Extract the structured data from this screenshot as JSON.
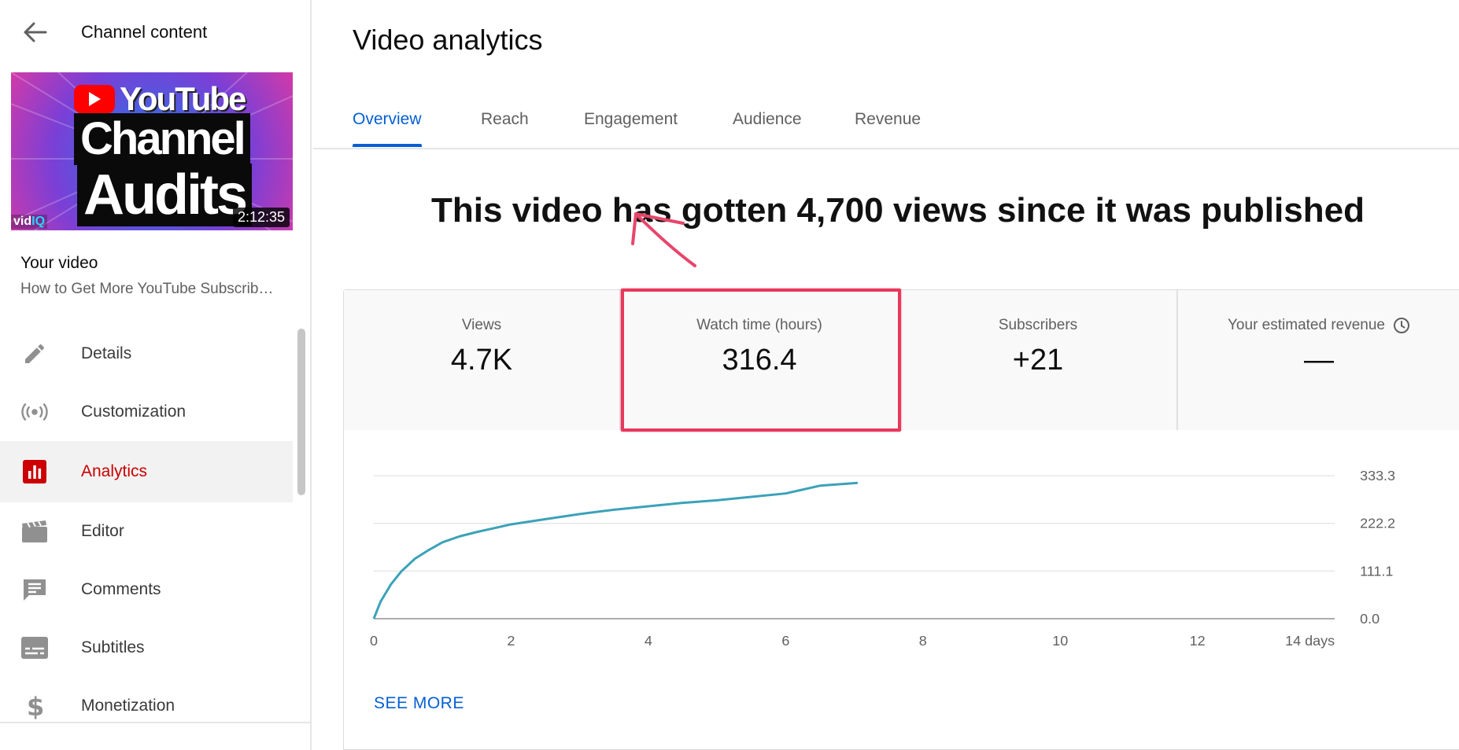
{
  "sidebar": {
    "back_title": "Channel content",
    "thumbnail": {
      "line1": "YouTube",
      "line2": "Channel",
      "line3": "Audits",
      "brand_vid": "vid",
      "brand_iq": "IQ",
      "duration": "2:12:35"
    },
    "your_video_label": "Your video",
    "video_title": "How to Get More YouTube Subscrib…",
    "nav": [
      {
        "label": "Details",
        "icon": "pencil-icon"
      },
      {
        "label": "Customization",
        "icon": "broadcast-icon"
      },
      {
        "label": "Analytics",
        "icon": "analytics-icon",
        "active": true
      },
      {
        "label": "Editor",
        "icon": "clapperboard-icon"
      },
      {
        "label": "Comments",
        "icon": "comment-icon"
      },
      {
        "label": "Subtitles",
        "icon": "subtitles-icon"
      },
      {
        "label": "Monetization",
        "icon": "dollar-icon"
      }
    ]
  },
  "main": {
    "title": "Video analytics",
    "tabs": [
      {
        "label": "Overview",
        "active": true
      },
      {
        "label": "Reach"
      },
      {
        "label": "Engagement"
      },
      {
        "label": "Audience"
      },
      {
        "label": "Revenue"
      }
    ],
    "headline": "This video has gotten 4,700 views since it was published",
    "metrics": [
      {
        "label": "Views",
        "value": "4.7K"
      },
      {
        "label": "Watch time (hours)",
        "value": "316.4"
      },
      {
        "label": "Subscribers",
        "value": "+21"
      },
      {
        "label": "Your estimated revenue",
        "value": "—"
      }
    ],
    "see_more": "SEE MORE"
  },
  "colors": {
    "accent": "#065fd4",
    "active_red": "#cc0000",
    "highlight": "#e8385c",
    "series": "#3ba2b9"
  },
  "chart_data": {
    "type": "line",
    "xlabel": "",
    "ylabel": "",
    "x_ticks": [
      "0",
      "2",
      "4",
      "6",
      "8",
      "10",
      "12",
      "14 days"
    ],
    "x_tick_values": [
      0,
      2,
      4,
      6,
      8,
      10,
      12,
      14
    ],
    "y_ticks": [
      "0.0",
      "111.1",
      "222.2",
      "333.3"
    ],
    "y_tick_values": [
      0,
      111.1,
      222.2,
      333.3
    ],
    "xlim": [
      0,
      14
    ],
    "ylim": [
      0,
      333.3
    ],
    "grid": true,
    "series": [
      {
        "x": [
          0,
          0.1,
          0.25,
          0.4,
          0.6,
          0.8,
          1.0,
          1.25,
          1.5,
          2.0,
          2.5,
          3.0,
          3.5,
          4.0,
          4.5,
          5.0,
          5.5,
          6.0,
          6.5,
          7.05
        ],
        "y": [
          0,
          40,
          80,
          110,
          140,
          160,
          178,
          192,
          202,
          220,
          232,
          244,
          254,
          262,
          270,
          276,
          284,
          292,
          310,
          316.4
        ]
      }
    ]
  }
}
